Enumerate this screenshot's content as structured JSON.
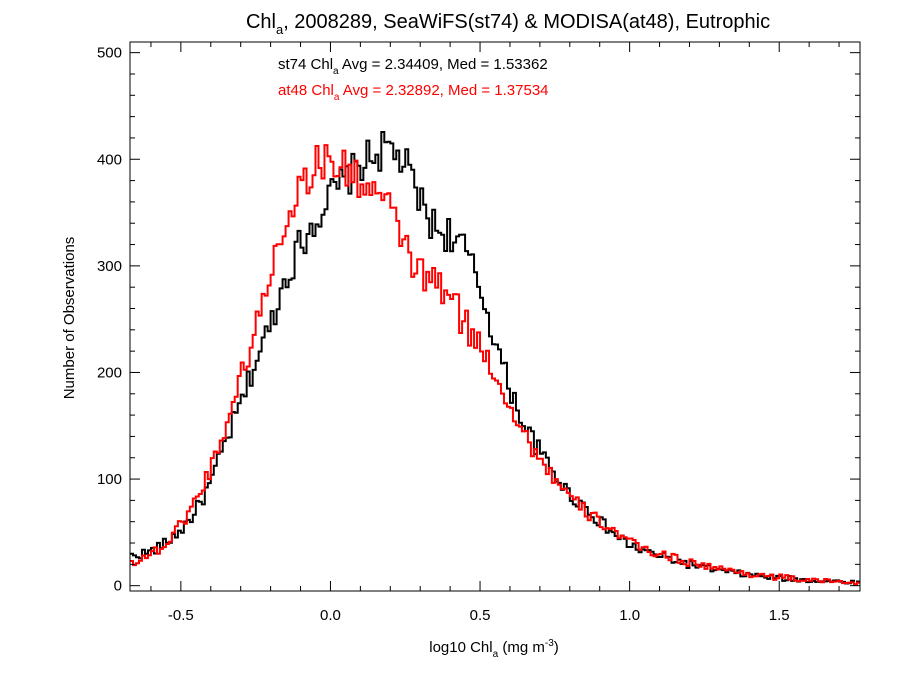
{
  "chart_data": {
    "type": "line",
    "title_main": "Chl",
    "title_sub": "a",
    "title_rest": ", 2008289, SeaWiFS(st74) & MODISA(at48), Eutrophic",
    "xlabel_main": "log10 Chl",
    "xlabel_sub": "a",
    "xlabel_rest": " (mg m",
    "xlabel_sup": "-3",
    "xlabel_end": ")",
    "ylabel": "Number of Observations",
    "xlim": [
      -0.67,
      1.77
    ],
    "ylim": [
      -5,
      510
    ],
    "x_ticks": [
      -0.5,
      0.0,
      0.5,
      1.0,
      1.5
    ],
    "x_tick_labels": [
      "-0.5",
      "0.0",
      "0.5",
      "1.0",
      "1.5"
    ],
    "y_ticks": [
      0,
      100,
      200,
      300,
      400,
      500
    ],
    "y_tick_labels": [
      "0",
      "100",
      "200",
      "300",
      "400",
      "500"
    ],
    "annotations": [
      {
        "prefix": "st74 Chl",
        "sub": "a",
        "rest": " Avg = 2.34409, Med = 1.53362",
        "color": "#000000"
      },
      {
        "prefix": "at48 Chl",
        "sub": "a",
        "rest": " Avg = 2.32892, Med = 1.37534",
        "color": "#ff0000"
      }
    ],
    "series": [
      {
        "color": "#000000",
        "x": [
          -0.66,
          -0.6,
          -0.55,
          -0.5,
          -0.45,
          -0.4,
          -0.35,
          -0.3,
          -0.25,
          -0.2,
          -0.15,
          -0.1,
          -0.05,
          0.0,
          0.05,
          0.1,
          0.15,
          0.2,
          0.25,
          0.3,
          0.35,
          0.4,
          0.45,
          0.5,
          0.55,
          0.6,
          0.65,
          0.7,
          0.75,
          0.8,
          0.85,
          0.9,
          0.95,
          1.0,
          1.05,
          1.1,
          1.15,
          1.2,
          1.3,
          1.4,
          1.5,
          1.6,
          1.77
        ],
        "y": [
          28,
          32,
          40,
          52,
          70,
          96,
          135,
          170,
          210,
          245,
          290,
          320,
          345,
          365,
          380,
          395,
          405,
          410,
          395,
          360,
          335,
          330,
          315,
          280,
          230,
          185,
          150,
          125,
          105,
          85,
          75,
          60,
          48,
          38,
          32,
          28,
          24,
          20,
          14,
          10,
          7,
          5,
          3
        ],
        "noise": [
          4,
          5,
          5,
          6,
          7,
          8,
          10,
          11,
          12,
          14,
          16,
          18,
          18,
          18,
          18,
          18,
          18,
          20,
          18,
          18,
          18,
          18,
          16,
          14,
          12,
          11,
          10,
          9,
          8,
          7,
          7,
          6,
          6,
          5,
          5,
          4,
          4,
          4,
          3,
          3,
          3,
          2,
          2
        ]
      },
      {
        "color": "#ff0000",
        "x": [
          -0.66,
          -0.6,
          -0.55,
          -0.5,
          -0.45,
          -0.4,
          -0.35,
          -0.3,
          -0.25,
          -0.2,
          -0.15,
          -0.1,
          -0.05,
          0.0,
          0.05,
          0.1,
          0.15,
          0.2,
          0.25,
          0.3,
          0.35,
          0.4,
          0.45,
          0.5,
          0.55,
          0.6,
          0.65,
          0.7,
          0.75,
          0.8,
          0.85,
          0.9,
          0.95,
          1.0,
          1.05,
          1.1,
          1.15,
          1.2,
          1.3,
          1.4,
          1.5,
          1.6,
          1.77
        ],
        "y": [
          22,
          30,
          38,
          58,
          80,
          110,
          150,
          195,
          240,
          295,
          345,
          375,
          395,
          400,
          390,
          380,
          370,
          350,
          320,
          290,
          285,
          270,
          245,
          225,
          200,
          170,
          140,
          120,
          100,
          82,
          70,
          60,
          52,
          40,
          34,
          30,
          26,
          22,
          16,
          11,
          8,
          5,
          3
        ],
        "noise": [
          4,
          5,
          5,
          6,
          8,
          9,
          10,
          12,
          14,
          16,
          18,
          18,
          18,
          20,
          18,
          18,
          18,
          18,
          18,
          18,
          18,
          18,
          16,
          14,
          12,
          11,
          10,
          9,
          8,
          7,
          7,
          6,
          6,
          5,
          5,
          4,
          4,
          4,
          3,
          3,
          3,
          2,
          2
        ]
      }
    ],
    "bin_width": 0.01,
    "grid": false,
    "legend": "annotation text top-left"
  }
}
